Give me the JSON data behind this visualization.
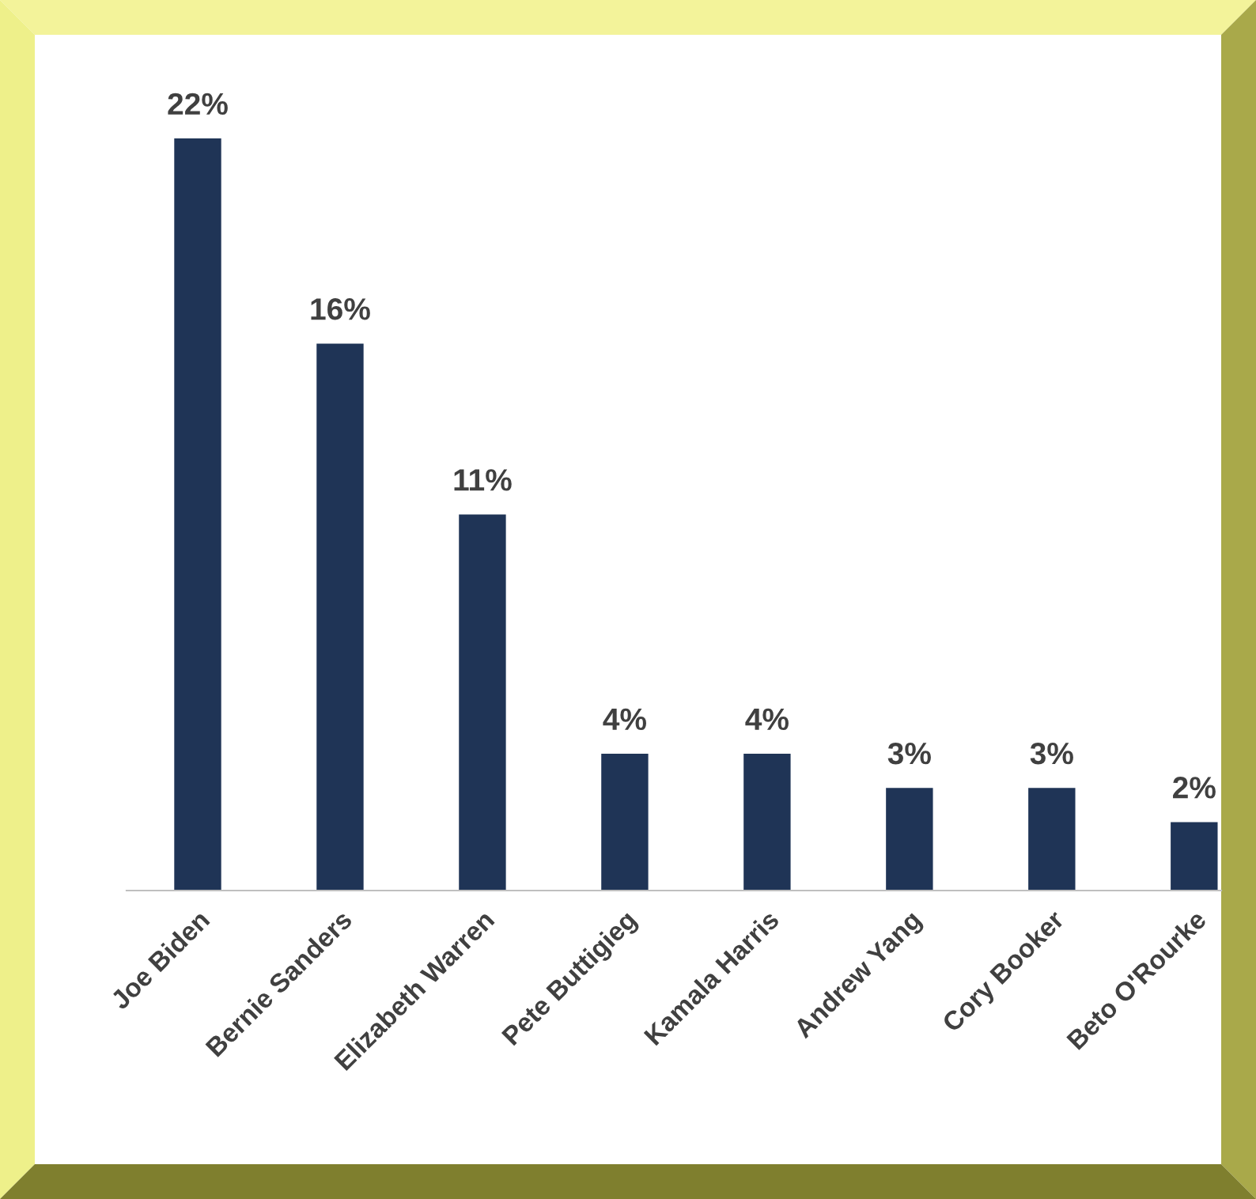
{
  "chart_data": {
    "type": "bar",
    "categories": [
      "Joe Biden",
      "Bernie Sanders",
      "Elizabeth Warren",
      "Pete Buttigieg",
      "Kamala Harris",
      "Andrew Yang",
      "Cory Booker",
      "Beto O'Rourke"
    ],
    "values": [
      22,
      16,
      11,
      4,
      4,
      3,
      3,
      2
    ],
    "value_labels": [
      "22%",
      "16%",
      "11%",
      "4%",
      "4%",
      "3%",
      "3%",
      "2%"
    ],
    "color": "#1f3456",
    "grid": false,
    "legend": false
  }
}
